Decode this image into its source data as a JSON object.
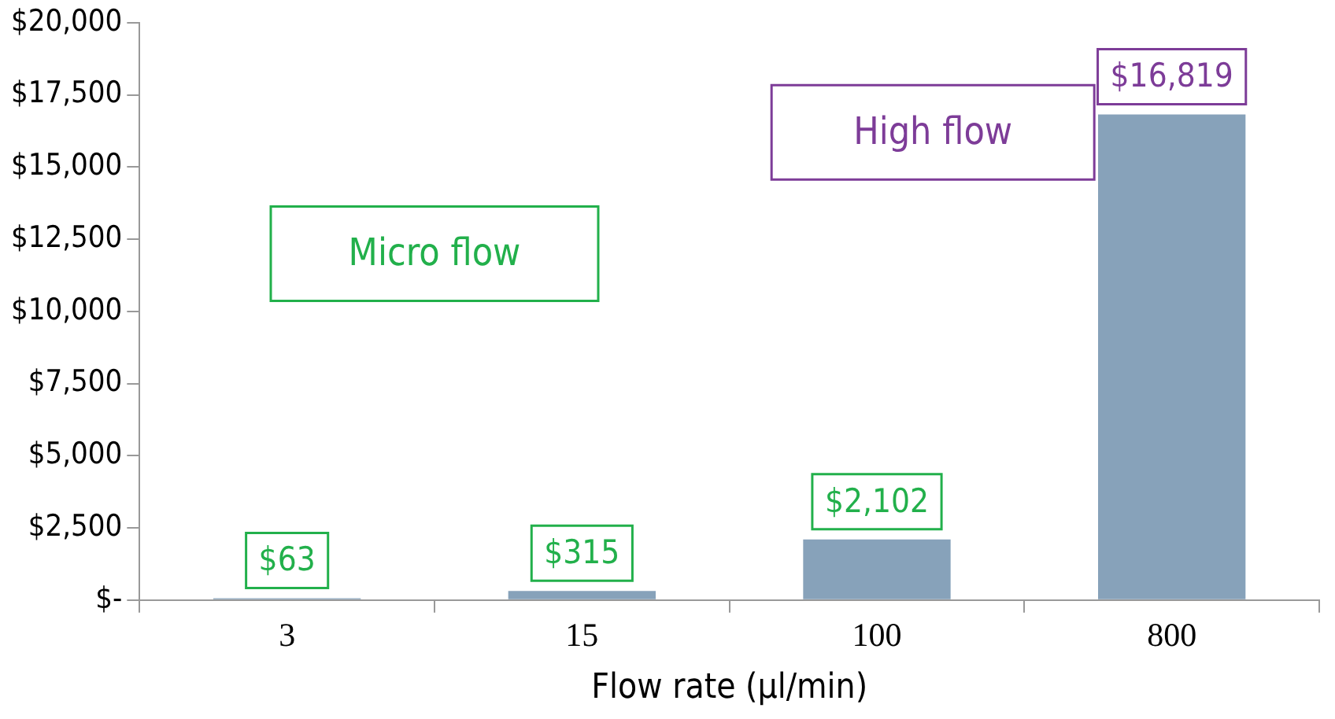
{
  "chart_data": {
    "type": "bar",
    "categories": [
      "3",
      "15",
      "100",
      "800"
    ],
    "values": [
      63,
      315,
      2102,
      16819
    ],
    "value_labels": [
      "$63",
      "$315",
      "$2,102",
      "$16,819"
    ],
    "color": "#87a2ba",
    "xlabel": "Flow rate (µl/min)",
    "ylim": [
      0,
      20000
    ],
    "yticks": [
      {
        "value": 0,
        "label": "$-"
      },
      {
        "value": 2500,
        "label": "$2,500"
      },
      {
        "value": 5000,
        "label": "$5,000"
      },
      {
        "value": 7500,
        "label": "$7,500"
      },
      {
        "value": 10000,
        "label": "$10,000"
      },
      {
        "value": 12500,
        "label": "$12,500"
      },
      {
        "value": 15000,
        "label": "$15,000"
      },
      {
        "value": 17500,
        "label": "$17,500"
      },
      {
        "value": 20000,
        "label": "$20,000"
      }
    ],
    "annotations": [
      "Micro flow",
      "High flow"
    ],
    "grid": false,
    "legend": false
  }
}
